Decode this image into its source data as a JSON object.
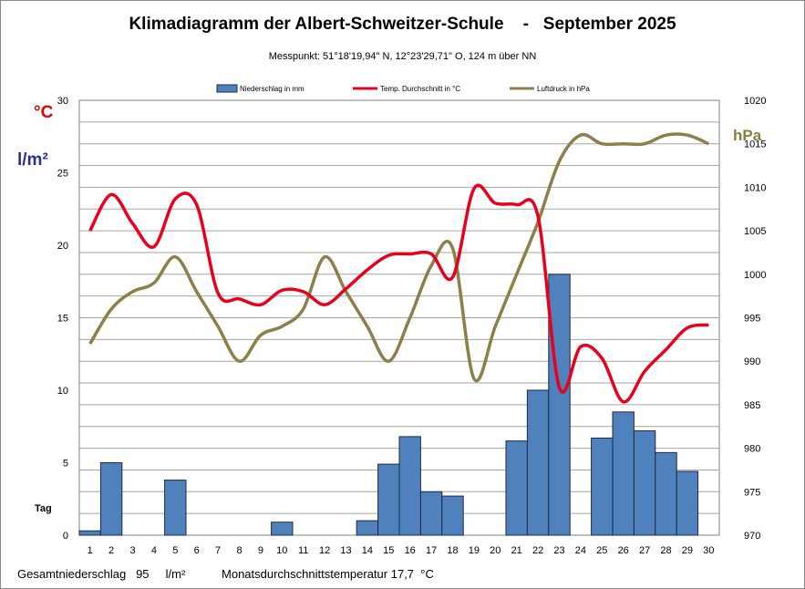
{
  "title": "Klimadiagramm der Albert-Schweitzer-Schule    -   September 2025",
  "subtitle": "Messpunkt:  51°18'19,94\" N,  12°23'29,71\" O,  124 m über NN",
  "units": {
    "celsius": "°C",
    "precip": "l/m²",
    "pressure": "hPa"
  },
  "tag_label": "Tag",
  "footer": {
    "precip_label": "Gesamtniederschlag",
    "precip_value": "95",
    "precip_unit": "l/m²",
    "temp_label": "Monatsdurchschnittstemperatur",
    "temp_value": "17,7",
    "temp_unit": "°C"
  },
  "colors": {
    "bar": "#4f81bd",
    "bar_edge": "#1f2a44",
    "temp": "#e8001c",
    "pressure": "#8c8048",
    "grid": "#a6a6a6"
  },
  "chart_data": {
    "type": "bar",
    "x": [
      1,
      2,
      3,
      4,
      5,
      6,
      7,
      8,
      9,
      10,
      11,
      12,
      13,
      14,
      15,
      16,
      17,
      18,
      19,
      20,
      21,
      22,
      23,
      24,
      25,
      26,
      27,
      28,
      29,
      30
    ],
    "x_tick_labels": [
      "1",
      "2",
      "3",
      "4",
      "5",
      "6",
      "7",
      "8",
      "9",
      "10",
      "11",
      "12",
      "13",
      "14",
      "15",
      "16",
      "17",
      "18",
      "19",
      "20",
      "21",
      "22",
      "23",
      "24",
      "25",
      "26",
      "27",
      "28",
      "29",
      "30"
    ],
    "y_left_ticks": [
      "0",
      "5",
      "10",
      "15",
      "20",
      "25",
      "30"
    ],
    "y_right_ticks": [
      "970",
      "975",
      "980",
      "985",
      "990",
      "995",
      "1000",
      "1005",
      "1010",
      "1015",
      "1020"
    ],
    "ylim_left": [
      0,
      30
    ],
    "ylim_right": [
      970,
      1020
    ],
    "grid": true,
    "legend_position": "top",
    "series": [
      {
        "name": "Niederschlag in mm",
        "type": "bar",
        "axis": "left",
        "values": [
          0.3,
          5.0,
          0,
          0,
          3.8,
          0,
          0,
          0,
          0,
          0.9,
          0,
          0,
          0,
          1.0,
          4.9,
          6.8,
          3.0,
          2.7,
          0,
          0,
          6.5,
          10.0,
          18.0,
          0,
          6.7,
          8.5,
          7.2,
          5.7,
          4.4,
          0
        ]
      },
      {
        "name": "Temp. Durchschnitt in °C",
        "type": "line",
        "axis": "left",
        "values": [
          21.0,
          23.5,
          21.5,
          19.9,
          23.2,
          22.8,
          16.7,
          16.3,
          15.9,
          16.9,
          16.8,
          15.9,
          17.0,
          18.3,
          19.3,
          19.4,
          19.4,
          17.8,
          23.9,
          22.9,
          22.8,
          22.0,
          10.2,
          13.0,
          12.2,
          9.2,
          11.3,
          12.8,
          14.3,
          14.5
        ]
      },
      {
        "name": "Luftdruck in hPa",
        "type": "line",
        "axis": "right",
        "values": [
          992,
          996,
          998,
          999,
          1002,
          998,
          994,
          990,
          993,
          994,
          996,
          1002,
          998,
          994,
          990,
          995,
          1001,
          1003,
          988,
          994,
          1000,
          1006,
          1013,
          1016,
          1015,
          1015,
          1015,
          1016,
          1016,
          1015
        ]
      }
    ]
  }
}
